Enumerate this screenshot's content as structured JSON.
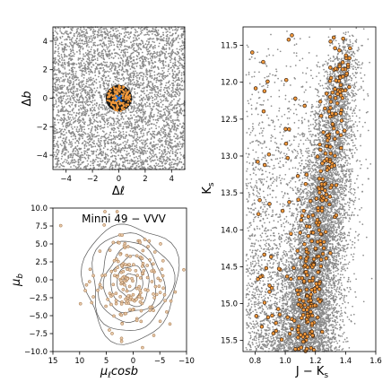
{
  "colors": {
    "field_star": "#8a8a8a",
    "member_fill": "#f39a3c",
    "member_edge": "#3a2414",
    "pm_fill": "#e9c9a8",
    "pm_edge": "#9a6e44",
    "cluster_center": "#1f6fd6",
    "contour": "#555555"
  },
  "chart_data": [
    {
      "type": "scatter",
      "xlabel_base": "Δ",
      "xlabel_italic": "ℓ",
      "ylabel_base": "Δ",
      "ylabel_italic": "b",
      "xlim": [
        -5,
        5
      ],
      "ylim": [
        -5,
        5
      ],
      "xticks": [
        -4,
        -2,
        0,
        2,
        4
      ],
      "yticks": [
        -4,
        -2,
        0,
        2,
        4
      ],
      "xtick_labels": [
        "−4",
        "−2",
        "0",
        "2",
        "4"
      ],
      "ytick_labels": [
        "−4",
        "−2",
        "0",
        "2",
        "4"
      ],
      "series": [
        {
          "role": "field",
          "color": "#8a8a8a",
          "n": 4200,
          "distribution": "uniform"
        },
        {
          "role": "members",
          "color": "#f39a3c",
          "n": 160,
          "radius": 1.0
        },
        {
          "role": "center",
          "color": "#1f6fd6",
          "points": [
            [
              0.0,
              0.0
            ]
          ]
        }
      ]
    },
    {
      "type": "scatter",
      "annotation": "Minni 49  −  VVV",
      "xlabel_base": "μ",
      "xlabel_sub": "ℓ",
      "xlabel_tail": "cosb",
      "ylabel_base": "μ",
      "ylabel_sub": "b",
      "xlim": [
        15,
        -10
      ],
      "ylim": [
        -10,
        10
      ],
      "xticks": [
        15,
        10,
        5,
        0,
        -5,
        -10
      ],
      "yticks": [
        -10,
        -7.5,
        -5,
        -2.5,
        0,
        2.5,
        5,
        7.5,
        10
      ],
      "xtick_labels": [
        "15",
        "10",
        "5",
        "0",
        "−5",
        "−10"
      ],
      "ytick_labels": [
        "−10.0",
        "−7.5",
        "−5.0",
        "−2.5",
        "0.0",
        "2.5",
        "5.0",
        "7.5",
        "10.0"
      ],
      "contours": {
        "center": [
          0.5,
          -0.3
        ],
        "radii_x": [
          1.2,
          2.4,
          3.6,
          4.8,
          6.0,
          7.5,
          8.8
        ],
        "radii_y": [
          1.2,
          2.3,
          3.4,
          4.5,
          5.6,
          6.8,
          8.2
        ]
      },
      "series": [
        {
          "role": "proper_motion_stars",
          "color": "#e9c9a8",
          "n": 180,
          "center": [
            0.5,
            -0.3
          ],
          "sigma": 3.6
        }
      ]
    },
    {
      "type": "scatter",
      "xlabel": "J − K",
      "xlabel_sub": "s",
      "ylabel": "K",
      "ylabel_sub": "s",
      "xlim": [
        0.72,
        1.6
      ],
      "ylim": [
        15.65,
        11.25
      ],
      "xticks": [
        0.8,
        1.0,
        1.2,
        1.4,
        1.6
      ],
      "yticks": [
        11.5,
        12.0,
        12.5,
        13.0,
        13.5,
        14.0,
        14.5,
        15.0,
        15.5
      ],
      "xtick_labels": [
        "0.8",
        "1.0",
        "1.2",
        "1.4",
        "1.6"
      ],
      "ytick_labels": [
        "11.5",
        "12.0",
        "12.5",
        "13.0",
        "13.5",
        "14.0",
        "14.5",
        "15.0",
        "15.5"
      ],
      "series": [
        {
          "role": "field_cmd",
          "color": "#8a8a8a",
          "n": 9000,
          "sequence_points": [
            [
              11.3,
              1.42
            ],
            [
              12.0,
              1.37
            ],
            [
              12.5,
              1.33
            ],
            [
              13.0,
              1.3
            ],
            [
              13.5,
              1.27
            ],
            [
              14.0,
              1.24
            ],
            [
              14.5,
              1.2
            ],
            [
              15.0,
              1.17
            ],
            [
              15.6,
              1.14
            ]
          ]
        },
        {
          "role": "cluster_members",
          "color": "#f39a3c",
          "n": 330
        }
      ]
    }
  ]
}
